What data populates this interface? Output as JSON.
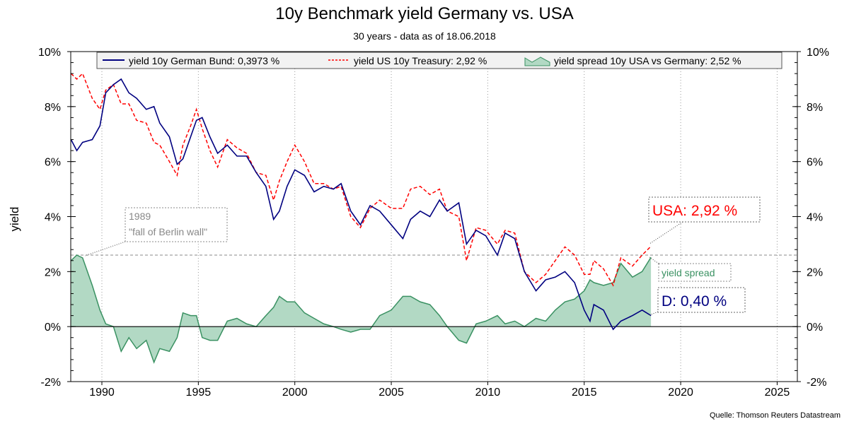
{
  "chart_data": {
    "type": "line",
    "title": "10y Benchmark yield Germany vs. USA",
    "subtitle": "30 years - data as of 18.06.2018",
    "ylabel": "yield",
    "xlabel": "",
    "xlim": [
      1988.4,
      2026
    ],
    "ylim": [
      -2,
      10
    ],
    "x_ticks": [
      "1990",
      "1995",
      "2000",
      "2005",
      "2010",
      "2015",
      "2020",
      "2025"
    ],
    "y_ticks": [
      "-2%",
      "0%",
      "2%",
      "4%",
      "6%",
      "8%",
      "10%"
    ],
    "grid": "vertical dotted at x ticks",
    "legend_position": "top",
    "legend": [
      "yield 10y German Bund: 0,3973 %",
      "yield US 10y Treasury: 2,92 %",
      "yield spread 10y USA vs Germany: 2,52 %"
    ],
    "colors": {
      "bund": "#000080",
      "us": "#ff0000",
      "spread_fill": "#b2d9c4",
      "spread_line": "#3a9162"
    },
    "x": [
      1988.4,
      1988.7,
      1989.0,
      1989.5,
      1989.9,
      1990.2,
      1990.6,
      1991.0,
      1991.4,
      1991.8,
      1992.3,
      1992.7,
      1993.0,
      1993.5,
      1993.9,
      1994.2,
      1994.6,
      1994.9,
      1995.2,
      1995.6,
      1996.0,
      1996.5,
      1997.0,
      1997.5,
      1998.0,
      1998.5,
      1998.9,
      1999.2,
      1999.6,
      2000.0,
      2000.5,
      2001.0,
      2001.5,
      2002.0,
      2002.4,
      2002.9,
      2003.4,
      2003.9,
      2004.4,
      2005.0,
      2005.6,
      2006.0,
      2006.5,
      2007.0,
      2007.5,
      2007.9,
      2008.5,
      2008.9,
      2009.4,
      2009.9,
      2010.5,
      2010.9,
      2011.4,
      2011.9,
      2012.5,
      2013.0,
      2013.5,
      2014.0,
      2014.5,
      2015.0,
      2015.3,
      2015.5,
      2016.0,
      2016.5,
      2016.9,
      2017.5,
      2018.0,
      2018.46
    ],
    "series": [
      {
        "name": "yield 10y German Bund",
        "values": [
          6.8,
          6.4,
          6.7,
          6.8,
          7.3,
          8.5,
          8.8,
          9.0,
          8.5,
          8.3,
          7.9,
          8.0,
          7.4,
          6.9,
          5.9,
          6.1,
          6.9,
          7.5,
          7.6,
          6.9,
          6.3,
          6.6,
          6.2,
          6.2,
          5.6,
          5.1,
          3.9,
          4.2,
          5.1,
          5.7,
          5.5,
          4.9,
          5.1,
          5.0,
          5.2,
          4.2,
          3.7,
          4.4,
          4.2,
          3.7,
          3.2,
          3.9,
          4.2,
          4.0,
          4.6,
          4.2,
          4.5,
          3.0,
          3.5,
          3.3,
          2.6,
          3.4,
          3.2,
          2.0,
          1.3,
          1.7,
          1.8,
          2.0,
          1.6,
          0.6,
          0.2,
          0.8,
          0.6,
          -0.1,
          0.2,
          0.4,
          0.6,
          0.4
        ]
      },
      {
        "name": "yield US 10y Treasury",
        "values": [
          9.2,
          9.0,
          9.2,
          8.3,
          7.9,
          8.6,
          8.8,
          8.1,
          8.1,
          7.5,
          7.4,
          6.7,
          6.6,
          6.0,
          5.5,
          6.6,
          7.3,
          7.9,
          7.2,
          6.4,
          5.8,
          6.8,
          6.5,
          6.3,
          5.6,
          5.5,
          4.6,
          5.3,
          6.0,
          6.6,
          6.0,
          5.2,
          5.2,
          5.0,
          5.1,
          4.0,
          3.6,
          4.3,
          4.6,
          4.3,
          4.3,
          5.0,
          5.1,
          4.8,
          5.0,
          4.2,
          4.0,
          2.4,
          3.6,
          3.5,
          3.0,
          3.5,
          3.4,
          2.0,
          1.6,
          1.9,
          2.4,
          2.9,
          2.6,
          1.9,
          1.9,
          2.4,
          2.1,
          1.5,
          2.5,
          2.2,
          2.6,
          2.92
        ]
      },
      {
        "name": "yield spread 10y USA vs Germany",
        "values": [
          2.4,
          2.6,
          2.5,
          1.5,
          0.6,
          0.1,
          0.0,
          -0.9,
          -0.4,
          -0.8,
          -0.5,
          -1.3,
          -0.8,
          -0.9,
          -0.4,
          0.5,
          0.4,
          0.4,
          -0.4,
          -0.5,
          -0.5,
          0.2,
          0.3,
          0.1,
          0.0,
          0.4,
          0.7,
          1.1,
          0.9,
          0.9,
          0.5,
          0.3,
          0.1,
          0.0,
          -0.1,
          -0.2,
          -0.1,
          -0.1,
          0.4,
          0.6,
          1.1,
          1.1,
          0.9,
          0.8,
          0.4,
          0.0,
          -0.5,
          -0.6,
          0.1,
          0.2,
          0.4,
          0.1,
          0.2,
          0.0,
          0.3,
          0.2,
          0.6,
          0.9,
          1.0,
          1.3,
          1.7,
          1.6,
          1.5,
          1.6,
          2.3,
          1.8,
          2.0,
          2.52
        ]
      }
    ],
    "reference_line": 2.6,
    "annotations": {
      "berlin_year": "1989",
      "berlin_text": "\"fall of Berlin wall\"",
      "usa_label": "USA: 2,92 %",
      "spread_label": "yield spread",
      "de_label": "D: 0,40 %"
    }
  },
  "source": "Quelle: Thomson Reuters Datastream"
}
